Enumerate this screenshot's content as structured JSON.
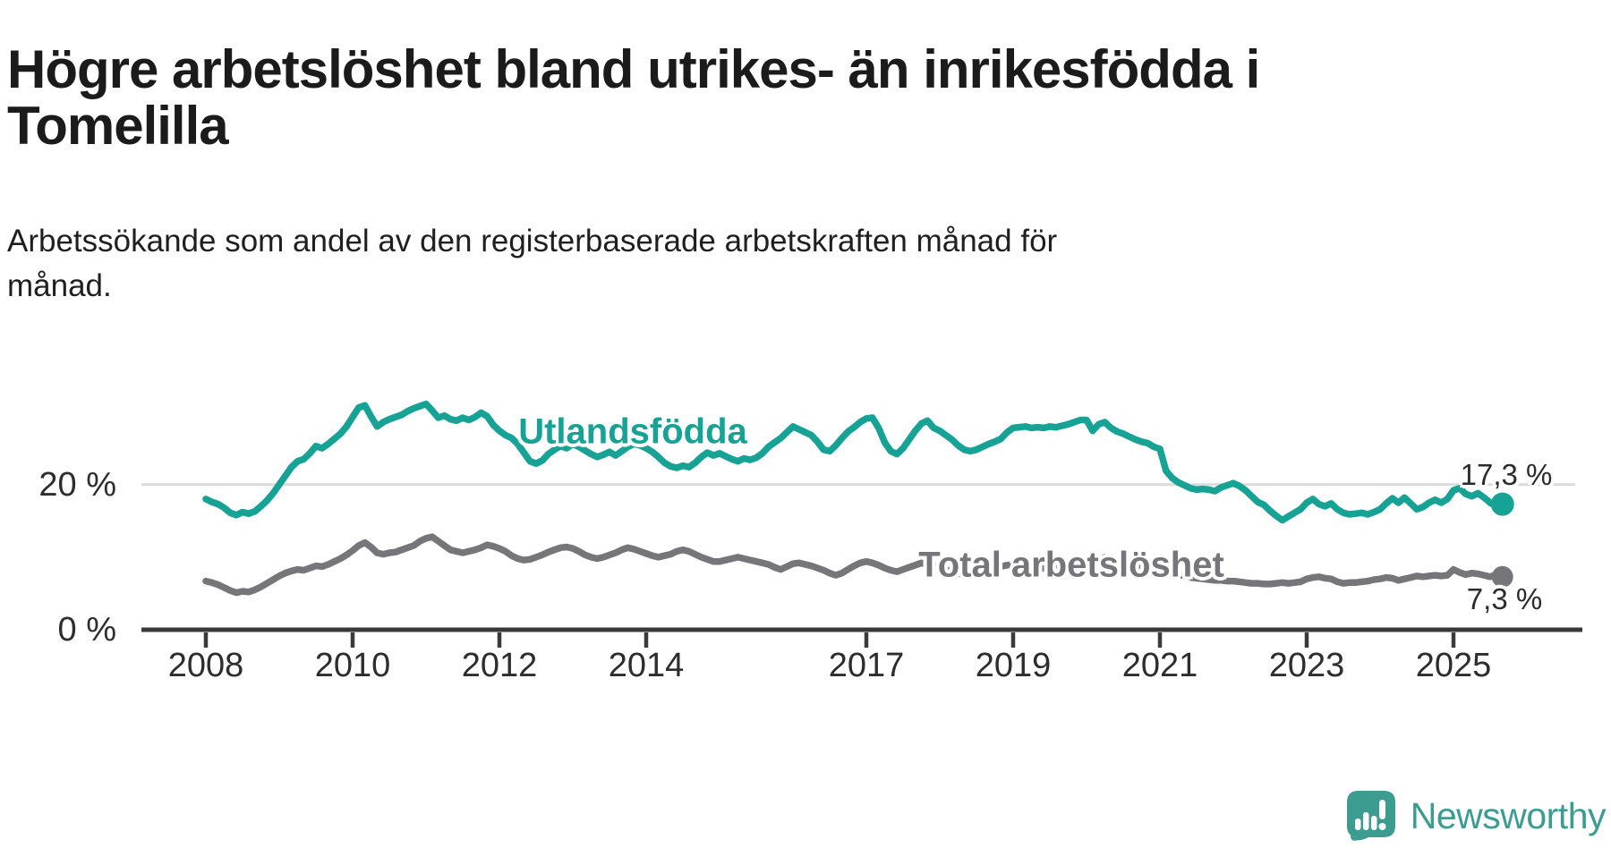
{
  "header": {
    "title": "Högre arbetslöshet bland utrikes- än inrikesfödda i Tomelilla",
    "title_lines": [
      "Högre arbetslöshet bland utrikes- än inrikesfödda i",
      "Tomelilla"
    ],
    "subtitle": "Arbetssökande som andel av den registerbaserade arbetskraften månad för månad.",
    "subtitle_lines": [
      "Arbetssökande som andel av den registerbaserade arbetskraften månad för",
      "månad."
    ]
  },
  "chart_data": {
    "type": "line",
    "title": "Högre arbetslöshet bland utrikes- än inrikesfödda i Tomelilla",
    "xlabel": "",
    "ylabel": "",
    "x_unit": "monthly",
    "x_range_start": "2008-01",
    "x_range_end": "2025-09",
    "ylim": [
      0,
      38
    ],
    "grid": "single horizontal gridline at 20 %",
    "x_ticks": [
      {
        "label": "2008",
        "year": 2008
      },
      {
        "label": "2010",
        "year": 2010
      },
      {
        "label": "2012",
        "year": 2012
      },
      {
        "label": "2014",
        "year": 2014
      },
      {
        "label": "2017",
        "year": 2017
      },
      {
        "label": "2019",
        "year": 2019
      },
      {
        "label": "2021",
        "year": 2021
      },
      {
        "label": "2023",
        "year": 2023
      },
      {
        "label": "2025",
        "year": 2025
      }
    ],
    "y_ticks": [
      {
        "label": "0 %",
        "value": 0,
        "gridline": false
      },
      {
        "label": "20 %",
        "value": 20,
        "gridline": true
      }
    ],
    "series": [
      {
        "name": "Utlandsfödda",
        "color": "#16A294",
        "end_label": "17,3 %",
        "end_value": 17.3,
        "dot_radius": 13,
        "values": [
          18.0,
          17.6,
          17.3,
          16.8,
          16.1,
          15.8,
          16.2,
          16.0,
          16.3,
          17.0,
          17.8,
          18.8,
          20.0,
          21.2,
          22.4,
          23.2,
          23.5,
          24.3,
          25.3,
          25.0,
          25.6,
          26.3,
          27.0,
          28.0,
          29.3,
          30.6,
          30.9,
          29.4,
          28.0,
          28.6,
          29.0,
          29.3,
          29.6,
          30.1,
          30.5,
          30.8,
          31.1,
          30.2,
          29.2,
          29.5,
          29.0,
          28.8,
          29.2,
          28.9,
          29.3,
          29.9,
          29.4,
          28.2,
          27.4,
          26.8,
          26.4,
          25.6,
          24.4,
          23.2,
          22.9,
          23.3,
          24.2,
          24.8,
          25.3,
          25.0,
          25.6,
          25.2,
          24.7,
          24.2,
          23.8,
          24.1,
          24.5,
          24.0,
          24.6,
          25.2,
          25.6,
          25.4,
          25.0,
          24.5,
          23.8,
          23.0,
          22.5,
          22.3,
          22.6,
          22.4,
          23.0,
          23.8,
          24.4,
          24.0,
          24.3,
          23.9,
          23.5,
          23.2,
          23.6,
          23.4,
          23.7,
          24.3,
          25.2,
          25.8,
          26.4,
          27.2,
          28.0,
          27.6,
          27.2,
          26.8,
          25.9,
          24.8,
          24.6,
          25.4,
          26.4,
          27.3,
          27.9,
          28.6,
          29.1,
          29.2,
          27.8,
          25.8,
          24.6,
          24.2,
          25.0,
          26.2,
          27.4,
          28.4,
          28.8,
          27.8,
          27.4,
          26.8,
          26.2,
          25.4,
          24.8,
          24.6,
          24.8,
          25.2,
          25.6,
          25.9,
          26.3,
          27.2,
          27.8,
          27.9,
          28.0,
          27.8,
          27.9,
          27.8,
          28.0,
          27.9,
          28.1,
          28.3,
          28.6,
          28.9,
          28.9,
          27.4,
          28.3,
          28.6,
          27.8,
          27.3,
          27.0,
          26.6,
          26.2,
          25.9,
          25.7,
          25.2,
          24.9,
          21.9,
          20.9,
          20.3,
          19.9,
          19.5,
          19.3,
          19.4,
          19.3,
          19.1,
          19.6,
          19.9,
          20.2,
          19.8,
          19.2,
          18.4,
          17.6,
          17.2,
          16.4,
          15.7,
          15.1,
          15.6,
          16.1,
          16.6,
          17.5,
          18.0,
          17.3,
          17.0,
          17.4,
          16.6,
          16.1,
          15.9,
          16.0,
          16.1,
          15.9,
          16.2,
          16.6,
          17.4,
          18.1,
          17.5,
          18.2,
          17.4,
          16.6,
          16.9,
          17.5,
          17.9,
          17.5,
          18.0,
          19.2,
          19.5,
          18.7,
          18.4,
          18.8,
          18.2,
          17.5,
          17.0,
          17.3
        ]
      },
      {
        "name": "Total arbetslöshet",
        "color": "#76757A",
        "end_label": "7,3 %",
        "end_value": 7.3,
        "dot_radius": 12,
        "values": [
          6.7,
          6.5,
          6.2,
          5.8,
          5.4,
          5.1,
          5.3,
          5.2,
          5.5,
          5.9,
          6.4,
          6.9,
          7.4,
          7.8,
          8.1,
          8.3,
          8.2,
          8.5,
          8.8,
          8.7,
          9.0,
          9.4,
          9.8,
          10.3,
          10.9,
          11.6,
          12.0,
          11.4,
          10.6,
          10.4,
          10.6,
          10.7,
          11.0,
          11.3,
          11.6,
          12.2,
          12.6,
          12.8,
          12.2,
          11.6,
          11.0,
          10.8,
          10.6,
          10.8,
          11.0,
          11.3,
          11.7,
          11.5,
          11.2,
          10.8,
          10.2,
          9.8,
          9.6,
          9.7,
          10.0,
          10.3,
          10.7,
          11.0,
          11.3,
          11.4,
          11.2,
          10.8,
          10.3,
          10.0,
          9.8,
          10.0,
          10.3,
          10.6,
          11.0,
          11.3,
          11.1,
          10.8,
          10.5,
          10.2,
          10.0,
          10.2,
          10.4,
          10.8,
          11.0,
          10.8,
          10.4,
          10.0,
          9.7,
          9.4,
          9.4,
          9.6,
          9.8,
          10.0,
          9.8,
          9.6,
          9.4,
          9.2,
          9.0,
          8.6,
          8.3,
          8.7,
          9.1,
          9.2,
          9.0,
          8.8,
          8.5,
          8.2,
          7.8,
          7.5,
          7.8,
          8.3,
          8.8,
          9.2,
          9.4,
          9.2,
          8.9,
          8.5,
          8.2,
          8.0,
          8.3,
          8.6,
          8.9,
          9.2,
          9.0,
          8.8,
          8.5,
          8.3,
          8.0,
          7.8,
          7.6,
          7.5,
          7.7,
          7.9,
          8.2,
          8.5,
          8.7,
          8.9,
          9.0,
          8.8,
          8.6,
          8.4,
          8.3,
          8.5,
          8.7,
          8.9,
          9.1,
          9.3,
          9.2,
          9.4,
          9.5,
          9.3,
          9.6,
          10.0,
          9.8,
          9.6,
          9.4,
          9.2,
          9.0,
          8.8,
          8.6,
          8.4,
          8.2,
          8.0,
          7.8,
          7.6,
          7.4,
          7.2,
          7.1,
          7.0,
          6.9,
          6.8,
          6.8,
          6.7,
          6.7,
          6.6,
          6.5,
          6.4,
          6.4,
          6.3,
          6.3,
          6.4,
          6.5,
          6.4,
          6.5,
          6.6,
          7.0,
          7.2,
          7.3,
          7.1,
          7.0,
          6.6,
          6.4,
          6.5,
          6.5,
          6.6,
          6.7,
          6.9,
          7.0,
          7.2,
          7.1,
          6.8,
          7.0,
          7.2,
          7.4,
          7.3,
          7.4,
          7.5,
          7.4,
          7.5,
          8.3,
          7.9,
          7.6,
          7.8,
          7.7,
          7.5,
          7.3,
          7.6,
          7.3
        ]
      }
    ],
    "legend_position": "inline labels on lines",
    "colors": {
      "axis": "#3a3a3a",
      "gridline": "#dbdbdb",
      "tick_text": "#2d2d2d",
      "value_label_text": "#2b2b2b"
    }
  },
  "branding": {
    "logo_text": "Newsworthy",
    "logo_color": "#3D9C90",
    "logo_badge_icon": "bar-chart-exclamation"
  }
}
